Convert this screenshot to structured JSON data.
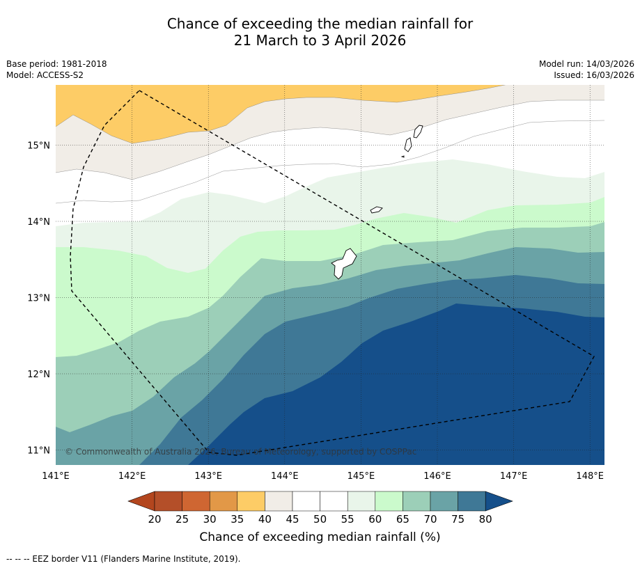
{
  "title": {
    "line1": "Chance of exceeding the median rainfall for",
    "line2": "21 March to 3 April 2026"
  },
  "meta": {
    "base_period": "Base period: 1981-2018",
    "model": "Model: ACCESS-S2",
    "model_run": "Model run: 14/03/2026",
    "issued": "Issued: 16/03/2026"
  },
  "map": {
    "lat_labels": [
      "15°N",
      "14°N",
      "13°N",
      "12°N",
      "11°N"
    ],
    "lon_labels": [
      "141°E",
      "142°E",
      "143°E",
      "144°E",
      "145°E",
      "146°E",
      "147°E",
      "148°E"
    ],
    "copyright": "© Commonwealth of Australia 2026, Bureau of Meteorology, supported by COSPPac"
  },
  "colorbar": {
    "ticks": [
      "20",
      "25",
      "30",
      "35",
      "40",
      "45",
      "50",
      "55",
      "60",
      "65",
      "70",
      "75",
      "80"
    ],
    "colors": {
      "below20": "#b3461e",
      "c20_25": "#b44f29",
      "c25_30": "#cf6632",
      "c30_35": "#e29847",
      "c35_40": "#fdcc66",
      "c40_45": "#f1ede7",
      "c45_50": "#ffffff",
      "c50_55": "#ffffff",
      "c55_60": "#e9f5ea",
      "c60_65": "#cbfacc",
      "c65_70": "#9ccfb8",
      "c70_75": "#6aa3a6",
      "c75_80": "#3f7896",
      "above80": "#154f8a"
    },
    "label": "Chance of exceeding median rainfall (%)"
  },
  "footnote": "--  --  -- EEZ border V11 (Flanders Marine Institute, 2019)."
}
